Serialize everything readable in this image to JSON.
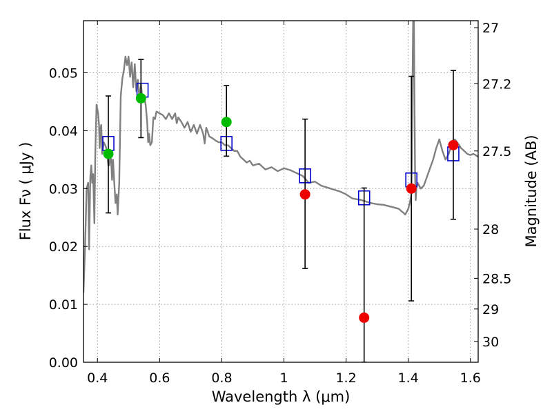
{
  "chart_data": {
    "type": "scatter",
    "xlabel": "Wavelength  λ (μm)",
    "ylabel": "Flux  Fν  ( μJy )",
    "ylabel_right": "Magnitude (AB)",
    "xlim": [
      0.355,
      1.625
    ],
    "ylim": [
      0.0,
      0.059
    ],
    "grid": true,
    "x_ticks": [
      0.4,
      0.6,
      0.8,
      1.0,
      1.2,
      1.4,
      1.6
    ],
    "x_tick_labels": [
      "0.4",
      "0.6",
      "0.8",
      "1",
      "1.2",
      "1.4",
      "1.6"
    ],
    "y_ticks": [
      0.0,
      0.01,
      0.02,
      0.03,
      0.04,
      0.05
    ],
    "y_tick_labels": [
      "0.00",
      "0.01",
      "0.02",
      "0.03",
      "0.04",
      "0.05"
    ],
    "right_ticks": [
      {
        "label": "27",
        "flux": 0.0578
      },
      {
        "label": "27.2",
        "flux": 0.0481
      },
      {
        "label": "27.5",
        "flux": 0.0365
      },
      {
        "label": "28",
        "flux": 0.023
      },
      {
        "label": "28.5",
        "flux": 0.0145
      },
      {
        "label": "29",
        "flux": 0.0092
      },
      {
        "label": "30",
        "flux": 0.0036
      }
    ],
    "colors": {
      "template": "#808080",
      "model": "#0000cc",
      "green": "#00bb00",
      "red": "#ee0000",
      "errorbar": "#000000",
      "grid": "#999999"
    },
    "series": [
      {
        "name": "model template spectrum",
        "kind": "line",
        "x": [
          0.355,
          0.36,
          0.365,
          0.37,
          0.373,
          0.377,
          0.38,
          0.383,
          0.386,
          0.39,
          0.393,
          0.397,
          0.402,
          0.405,
          0.407,
          0.409,
          0.412,
          0.415,
          0.42,
          0.425,
          0.428,
          0.432,
          0.435,
          0.438,
          0.441,
          0.444,
          0.447,
          0.45,
          0.454,
          0.458,
          0.462,
          0.465,
          0.47,
          0.475,
          0.48,
          0.485,
          0.49,
          0.495,
          0.5,
          0.505,
          0.51,
          0.515,
          0.52,
          0.525,
          0.53,
          0.535,
          0.54,
          0.545,
          0.55,
          0.555,
          0.56,
          0.563,
          0.566,
          0.57,
          0.575,
          0.58,
          0.585,
          0.59,
          0.6,
          0.61,
          0.62,
          0.63,
          0.64,
          0.65,
          0.655,
          0.66,
          0.67,
          0.68,
          0.69,
          0.7,
          0.71,
          0.72,
          0.73,
          0.74,
          0.745,
          0.75,
          0.76,
          0.77,
          0.78,
          0.79,
          0.8,
          0.81,
          0.82,
          0.83,
          0.84,
          0.85,
          0.86,
          0.87,
          0.88,
          0.89,
          0.9,
          0.92,
          0.94,
          0.96,
          0.98,
          1.0,
          1.02,
          1.04,
          1.06,
          1.08,
          1.1,
          1.12,
          1.15,
          1.18,
          1.2,
          1.22,
          1.25,
          1.28,
          1.3,
          1.32,
          1.35,
          1.37,
          1.38,
          1.385,
          1.39,
          1.395,
          1.4,
          1.405,
          1.41,
          1.412,
          1.414,
          1.416,
          1.418,
          1.42,
          1.422,
          1.424,
          1.426,
          1.43,
          1.44,
          1.45,
          1.46,
          1.47,
          1.48,
          1.49,
          1.5,
          1.51,
          1.52,
          1.53,
          1.54,
          1.55,
          1.56,
          1.57,
          1.58,
          1.59,
          1.6,
          1.61,
          1.625
        ],
        "y": [
          0.012,
          0.02,
          0.03,
          0.031,
          0.0195,
          0.032,
          0.034,
          0.031,
          0.0325,
          0.024,
          0.036,
          0.0445,
          0.043,
          0.041,
          0.037,
          0.04,
          0.041,
          0.036,
          0.038,
          0.0375,
          0.037,
          0.0355,
          0.034,
          0.034,
          0.0355,
          0.035,
          0.0315,
          0.035,
          0.031,
          0.0275,
          0.029,
          0.0255,
          0.031,
          0.046,
          0.049,
          0.0505,
          0.0528,
          0.0513,
          0.0528,
          0.0493,
          0.0518,
          0.0475,
          0.0515,
          0.0468,
          0.0488,
          0.0455,
          0.048,
          0.0452,
          0.0458,
          0.0445,
          0.0415,
          0.038,
          0.0395,
          0.0375,
          0.038,
          0.0423,
          0.042,
          0.0433,
          0.043,
          0.0427,
          0.042,
          0.043,
          0.042,
          0.043,
          0.0413,
          0.0423,
          0.0415,
          0.0405,
          0.0415,
          0.0398,
          0.041,
          0.0395,
          0.041,
          0.0395,
          0.0378,
          0.0405,
          0.039,
          0.0387,
          0.0383,
          0.038,
          0.038,
          0.0375,
          0.0375,
          0.037,
          0.0365,
          0.0365,
          0.0355,
          0.035,
          0.0345,
          0.0348,
          0.034,
          0.0343,
          0.0333,
          0.0337,
          0.033,
          0.0335,
          0.0332,
          0.0327,
          0.0322,
          0.031,
          0.0312,
          0.0305,
          0.03,
          0.0295,
          0.029,
          0.0283,
          0.028,
          0.0275,
          0.0273,
          0.0272,
          0.0268,
          0.0265,
          0.026,
          0.0258,
          0.0255,
          0.026,
          0.0265,
          0.0275,
          0.029,
          0.035,
          0.05,
          0.061,
          0.061,
          0.045,
          0.032,
          0.028,
          0.03,
          0.031,
          0.03,
          0.0305,
          0.032,
          0.0335,
          0.035,
          0.037,
          0.0385,
          0.0365,
          0.035,
          0.036,
          0.0375,
          0.0385,
          0.0378,
          0.037,
          0.0365,
          0.036,
          0.0358,
          0.036,
          0.0355
        ]
      },
      {
        "name": "model photometry",
        "kind": "open-square",
        "x": [
          0.435,
          0.545,
          0.815,
          1.068,
          1.258,
          1.41,
          1.545
        ],
        "y": [
          0.0378,
          0.047,
          0.0378,
          0.0322,
          0.0284,
          0.0315,
          0.036
        ]
      },
      {
        "name": "observed (green)",
        "kind": "point",
        "x": [
          0.435,
          0.54,
          0.815
        ],
        "y": [
          0.036,
          0.0456,
          0.0415
        ],
        "err_low": [
          0.0258,
          0.0388,
          0.0356
        ],
        "err_high": [
          0.046,
          0.0523,
          0.0478
        ]
      },
      {
        "name": "observed (red)",
        "kind": "point",
        "x": [
          1.068,
          1.258,
          1.41,
          1.545
        ],
        "y": [
          0.029,
          0.0077,
          0.03,
          0.0375
        ],
        "err_low": [
          0.0162,
          0.0,
          0.0106,
          0.0247
        ],
        "err_high": [
          0.042,
          0.0301,
          0.0494,
          0.0504
        ]
      }
    ]
  }
}
